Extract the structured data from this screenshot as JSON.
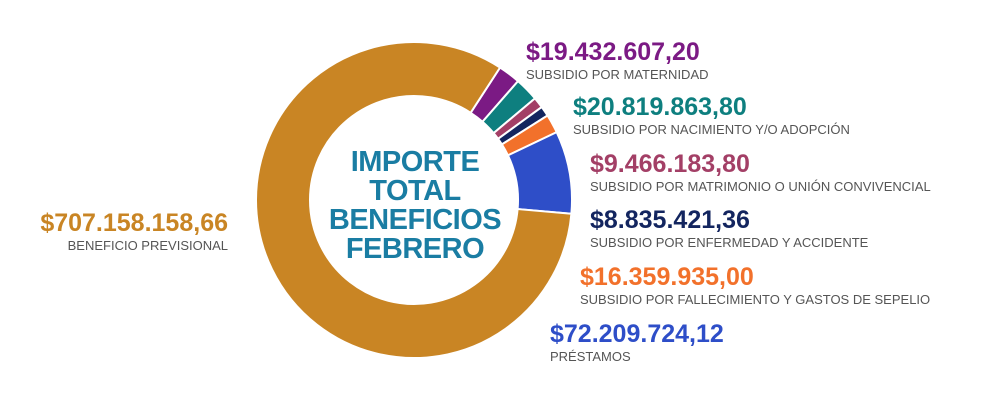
{
  "center_title": {
    "line1": "IMPORTE",
    "line2": "TOTAL",
    "line3": "BENEFICIOS",
    "line4": "FEBRERO"
  },
  "chart_data": {
    "type": "pie",
    "variant": "donut",
    "slices": [
      {
        "label": "SUBSIDIO POR MATERNIDAD",
        "value": 19432607.2,
        "display": "$19.432.607,20",
        "color": "#7b1a84"
      },
      {
        "label": "SUBSIDIO POR NACIMIENTO Y/O ADOPCIÓN",
        "value": 20819863.8,
        "display": "$20.819.863,80",
        "color": "#0e7f7f"
      },
      {
        "label": "SUBSIDIO POR MATRIMONIO O UNIÓN CONVIVENCIAL",
        "value": 9466183.8,
        "display": "$9.466.183,80",
        "color": "#a33f66"
      },
      {
        "label": "SUBSIDIO POR ENFERMEDAD Y ACCIDENTE",
        "value": 8835421.36,
        "display": "$8.835.421,36",
        "color": "#13255f"
      },
      {
        "label": "SUBSIDIO POR FALLECIMIENTO Y GASTOS DE SEPELIO",
        "value": 16359935.0,
        "display": "$16.359.935,00",
        "color": "#f2712b"
      },
      {
        "label": "PRÉSTAMOS",
        "value": 72209724.12,
        "display": "$72.209.724,12",
        "color": "#2e4ec8"
      },
      {
        "label": "BENEFICIO PREVISIONAL",
        "value": 707158158.66,
        "display": "$707.158.158,66",
        "color": "#c98524"
      }
    ]
  }
}
